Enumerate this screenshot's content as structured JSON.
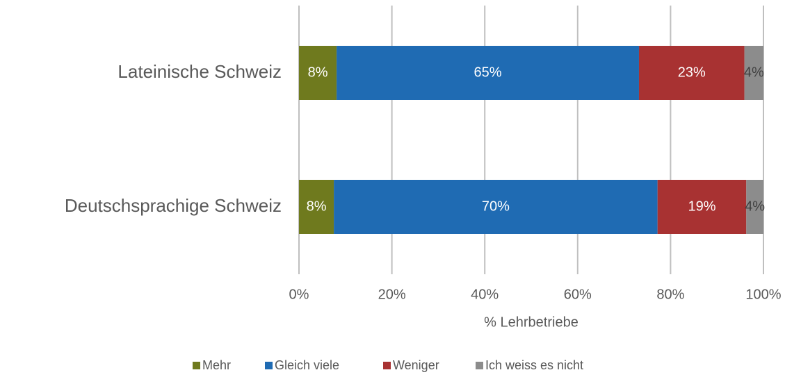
{
  "chart_data": {
    "type": "stacked_bar_horizontal",
    "categories": [
      "Lateinische Schweiz",
      "Deutschsprachige Schweiz"
    ],
    "series": [
      {
        "name": "Mehr",
        "color": "#6f7a1e",
        "values": [
          8.1,
          7.5
        ],
        "value_labels": [
          "8%",
          "8%"
        ]
      },
      {
        "name": "Gleich viele",
        "color": "#1f6bb3",
        "values": [
          65.1,
          69.7
        ],
        "value_labels": [
          "65%",
          "70%"
        ]
      },
      {
        "name": "Weniger",
        "color": "#a83232",
        "values": [
          22.7,
          19.1
        ],
        "value_labels": [
          "23%",
          "19%"
        ]
      },
      {
        "name": "Ich weiss es nicht",
        "color": "#8c8c8c",
        "values": [
          4.1,
          3.7
        ],
        "value_labels": [
          "4%",
          "4%"
        ]
      }
    ],
    "xlabel": "% Lehrbetriebe",
    "xlim": [
      0,
      100
    ],
    "xticks": [
      {
        "value": 0,
        "label": "0%"
      },
      {
        "value": 20,
        "label": "20%"
      },
      {
        "value": 40,
        "label": "40%"
      },
      {
        "value": 60,
        "label": "60%"
      },
      {
        "value": 80,
        "label": "80%"
      },
      {
        "value": 100,
        "label": "100%"
      }
    ],
    "grid": true,
    "legend": "bottom"
  }
}
